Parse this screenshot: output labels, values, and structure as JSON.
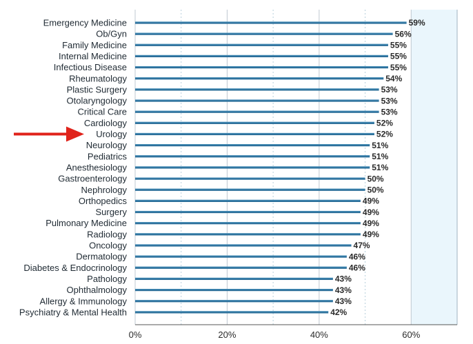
{
  "chart_data": {
    "type": "bar",
    "orientation": "horizontal",
    "categories": [
      "Emergency Medicine",
      "Ob/Gyn",
      "Family Medicine",
      "Internal Medicine",
      "Infectious Disease",
      "Rheumatology",
      "Plastic Surgery",
      "Otolaryngology",
      "Critical Care",
      "Cardiology",
      "Urology",
      "Neurology",
      "Pediatrics",
      "Anesthesiology",
      "Gastroenterology",
      "Nephrology",
      "Orthopedics",
      "Surgery",
      "Pulmonary Medicine",
      "Radiology",
      "Oncology",
      "Dermatology",
      "Diabetes & Endocrinology",
      "Pathology",
      "Ophthalmology",
      "Allergy & Immunology",
      "Psychiatry & Mental Health"
    ],
    "values": [
      59,
      56,
      55,
      55,
      55,
      54,
      53,
      53,
      53,
      52,
      52,
      51,
      51,
      51,
      50,
      50,
      49,
      49,
      49,
      49,
      47,
      46,
      46,
      43,
      43,
      43,
      42
    ],
    "value_labels": [
      "59%",
      "56%",
      "55%",
      "55%",
      "55%",
      "54%",
      "53%",
      "53%",
      "53%",
      "52%",
      "52%",
      "51%",
      "51%",
      "51%",
      "50%",
      "50%",
      "49%",
      "49%",
      "49%",
      "49%",
      "47%",
      "46%",
      "46%",
      "43%",
      "43%",
      "43%",
      "42%"
    ],
    "xlim": [
      0,
      70
    ],
    "x_ticks": [
      0,
      20,
      40,
      60
    ],
    "x_tick_labels": [
      "0%",
      "20%",
      "40%",
      "60%"
    ],
    "minor_gridlines": [
      10,
      30,
      50
    ],
    "grid": true,
    "title": "",
    "xlabel": "",
    "ylabel": "",
    "highlight": "Urology",
    "colors": {
      "bar": "#2b6f9a",
      "bar_highlight": "#5ea7d1",
      "background_band": "#eaf6fc",
      "grid_major": "#bfc9d1",
      "grid_minor": "#b6cfdc",
      "arrow": "#e0231b"
    }
  }
}
